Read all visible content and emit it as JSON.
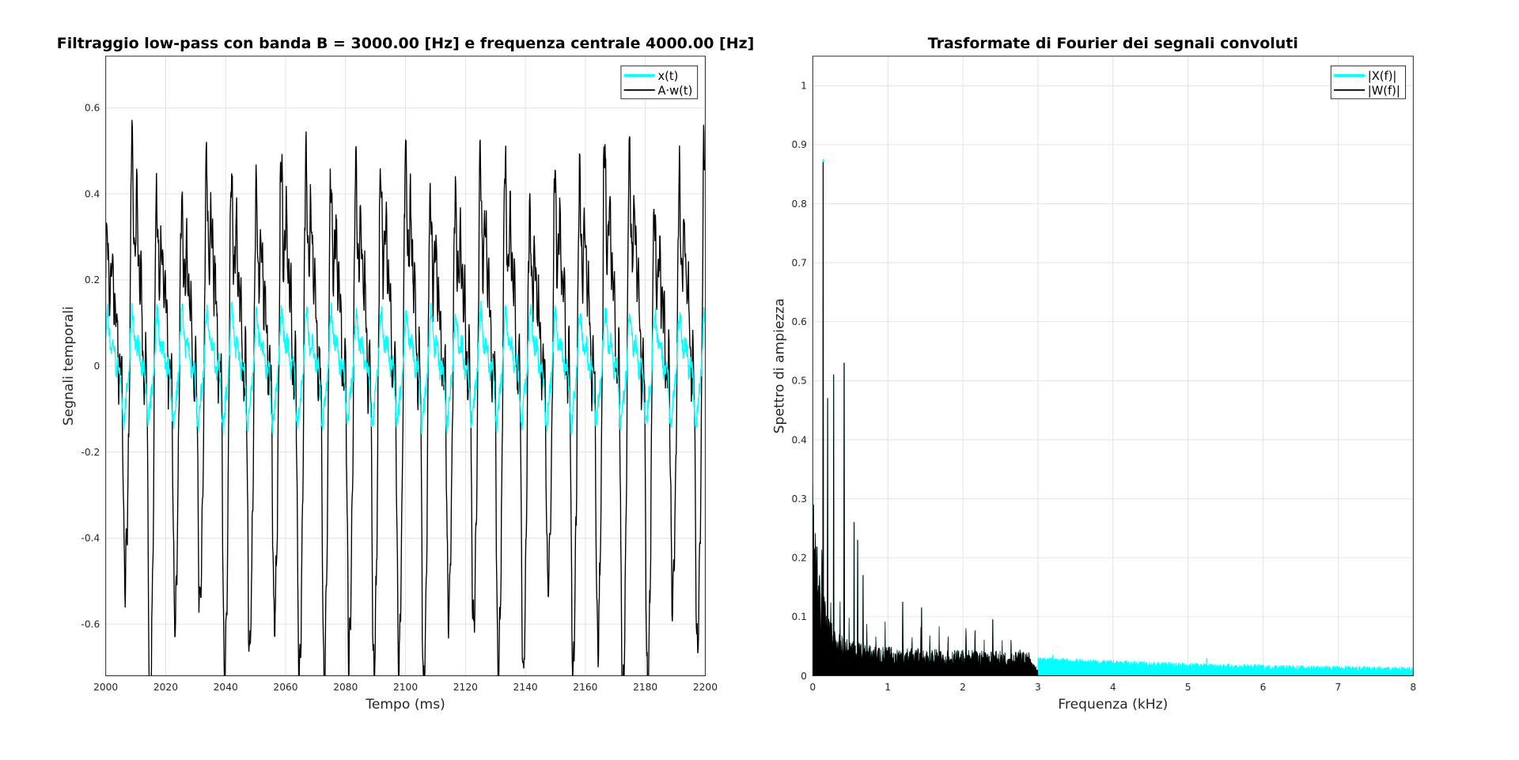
{
  "chart_data": [
    {
      "type": "line",
      "title": "Filtraggio low-pass con banda B = 3000.00 [Hz] e frequenza centrale 4000.00 [Hz]",
      "xlabel": "Tempo (ms)",
      "ylabel": "Segnali temporali",
      "xlim": [
        2000,
        2200
      ],
      "ylim": [
        -0.72,
        0.72
      ],
      "xticks": [
        "2000",
        "2020",
        "2040",
        "2060",
        "2080",
        "2100",
        "2120",
        "2140",
        "2160",
        "2180",
        "2200"
      ],
      "yticks": [
        "-0.6",
        "-0.4",
        "-0.2",
        "0",
        "0.2",
        "0.4",
        "0.6"
      ],
      "grid": true,
      "legend_placement": "top-right",
      "series": [
        {
          "name": "x(t)",
          "color": "#00ffff",
          "amplitude_range": [
            -0.16,
            0.18
          ],
          "period_ms": 8.3
        },
        {
          "name": "A·w(t)",
          "color": "#000000",
          "amplitude_range": [
            -0.72,
            0.72
          ],
          "period_ms": 8.3
        }
      ]
    },
    {
      "type": "area",
      "title": "Trasformate di Fourier dei segnali convoluti",
      "xlabel": "Frequenza (kHz)",
      "ylabel": "Spettro di ampiezza",
      "xlim": [
        0,
        8
      ],
      "ylim": [
        0,
        1.05
      ],
      "xticks": [
        "0",
        "1",
        "2",
        "3",
        "4",
        "5",
        "6",
        "7",
        "8"
      ],
      "yticks": [
        "0",
        "0.1",
        "0.2",
        "0.3",
        "0.4",
        "0.5",
        "0.6",
        "0.7",
        "0.8",
        "0.9",
        "1"
      ],
      "grid": true,
      "legend_placement": "top-right",
      "series": [
        {
          "name": "|X(f)|",
          "color": "#00ffff",
          "peaks": [
            [
              0.14,
              0.875
            ],
            [
              3.2,
              0.035
            ],
            [
              5.25,
              0.03
            ]
          ],
          "floor_range_3_to_8_khz": [
            0.025,
            0.008
          ]
        },
        {
          "name": "|W(f)|",
          "color": "#000000",
          "cutoff_khz": 3.0,
          "peaks": [
            [
              0.14,
              0.87
            ],
            [
              0.2,
              0.47
            ],
            [
              0.28,
              0.51
            ],
            [
              0.42,
              0.53
            ],
            [
              0.55,
              0.26
            ],
            [
              0.6,
              0.23
            ],
            [
              0.67,
              0.17
            ],
            [
              1.2,
              0.125
            ],
            [
              1.45,
              0.115
            ],
            [
              2.4,
              0.095
            ]
          ]
        }
      ]
    }
  ]
}
